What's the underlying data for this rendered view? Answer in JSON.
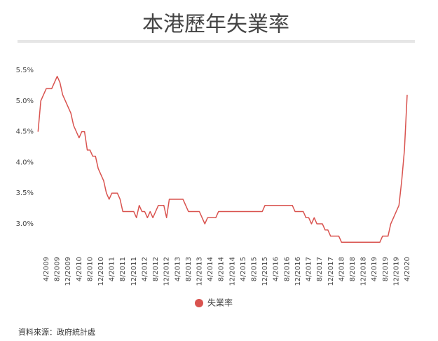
{
  "chart_data": {
    "type": "line",
    "title": "本港歷年失業率",
    "categories": [
      null,
      null,
      null,
      "4/2009",
      null,
      null,
      null,
      "8/2009",
      null,
      null,
      null,
      "12/2009",
      null,
      null,
      null,
      "4/2010",
      null,
      null,
      null,
      "8/2010",
      null,
      null,
      null,
      "12/2010",
      null,
      null,
      null,
      "4/2011",
      null,
      null,
      null,
      "8/2011",
      null,
      null,
      null,
      "12/2011",
      null,
      null,
      null,
      "4/2012",
      null,
      null,
      null,
      "8/2012",
      null,
      null,
      null,
      "12/2012",
      null,
      null,
      null,
      "4/2013",
      null,
      null,
      null,
      "8/2013",
      null,
      null,
      null,
      "12/2013",
      null,
      null,
      null,
      "4/2014",
      null,
      null,
      null,
      "8/2014",
      null,
      null,
      null,
      "12/2014",
      null,
      null,
      null,
      "4/2015",
      null,
      null,
      null,
      "8/2015",
      null,
      null,
      null,
      "12/2015",
      null,
      null,
      null,
      "4/2016",
      null,
      null,
      null,
      "8/2016",
      null,
      null,
      null,
      "12/2016",
      null,
      null,
      null,
      "4/2017",
      null,
      null,
      null,
      "8/2017",
      null,
      null,
      null,
      "12/2017",
      null,
      null,
      null,
      "4/2018",
      null,
      null,
      null,
      "8/2018",
      null,
      null,
      null,
      "12/2018",
      null,
      null,
      null,
      "4/2019",
      null,
      null,
      null,
      "8/2019",
      null,
      null,
      null,
      "12/2019",
      null,
      null,
      null,
      "4/2020"
    ],
    "series": [
      {
        "name": "失業率",
        "color": "#d9534f",
        "values": [
          4.5,
          5.0,
          5.1,
          5.2,
          5.2,
          5.2,
          5.3,
          5.4,
          5.3,
          5.1,
          5.0,
          4.9,
          4.8,
          4.6,
          4.5,
          4.4,
          4.5,
          4.5,
          4.2,
          4.2,
          4.1,
          4.1,
          3.9,
          3.8,
          3.7,
          3.5,
          3.4,
          3.5,
          3.5,
          3.5,
          3.4,
          3.2,
          3.2,
          3.2,
          3.2,
          3.2,
          3.1,
          3.3,
          3.2,
          3.2,
          3.1,
          3.2,
          3.1,
          3.2,
          3.3,
          3.3,
          3.3,
          3.1,
          3.4,
          3.4,
          3.4,
          3.4,
          3.4,
          3.4,
          3.3,
          3.2,
          3.2,
          3.2,
          3.2,
          3.2,
          3.1,
          3.0,
          3.1,
          3.1,
          3.1,
          3.1,
          3.2,
          3.2,
          3.2,
          3.2,
          3.2,
          3.2,
          3.2,
          3.2,
          3.2,
          3.2,
          3.2,
          3.2,
          3.2,
          3.2,
          3.2,
          3.2,
          3.2,
          3.3,
          3.3,
          3.3,
          3.3,
          3.3,
          3.3,
          3.3,
          3.3,
          3.3,
          3.3,
          3.3,
          3.2,
          3.2,
          3.2,
          3.2,
          3.1,
          3.1,
          3.0,
          3.1,
          3.0,
          3.0,
          3.0,
          2.9,
          2.9,
          2.8,
          2.8,
          2.8,
          2.8,
          2.7,
          2.7,
          2.7,
          2.7,
          2.7,
          2.7,
          2.7,
          2.7,
          2.7,
          2.7,
          2.7,
          2.7,
          2.7,
          2.7,
          2.7,
          2.8,
          2.8,
          2.8,
          3.0,
          3.1,
          3.2,
          3.3,
          3.7,
          4.2,
          5.1
        ]
      }
    ],
    "ylim": [
      2.7,
      5.9
    ],
    "yticks": [
      {
        "value": 3.0,
        "label": "3.0%"
      },
      {
        "value": 3.5,
        "label": "3.5%"
      },
      {
        "value": 4.0,
        "label": "4.0%"
      },
      {
        "value": 4.5,
        "label": "4.5%"
      },
      {
        "value": 5.0,
        "label": "5.0%"
      },
      {
        "value": 5.5,
        "label": "5.5%"
      }
    ],
    "grid": false,
    "source": "資料來源：政府統計處"
  }
}
